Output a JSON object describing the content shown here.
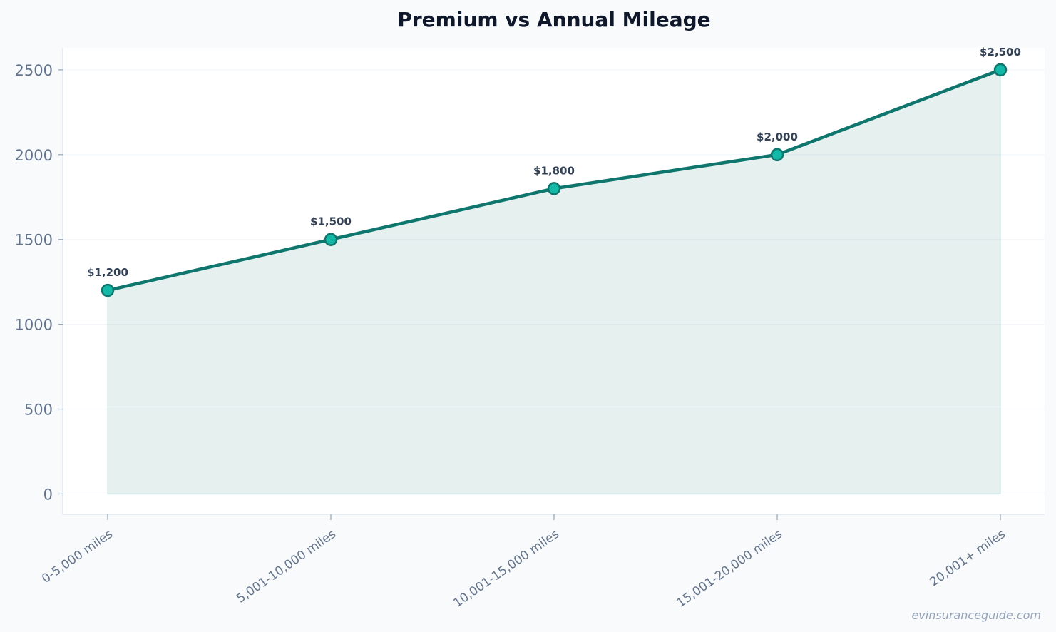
{
  "chart_data": {
    "type": "line",
    "title": "Premium vs Annual Mileage",
    "xlabel": "",
    "ylabel": "",
    "categories": [
      "0-5,000 miles",
      "5,001-10,000 miles",
      "10,001-15,000 miles",
      "15,001-20,000 miles",
      "20,001+ miles"
    ],
    "series": [
      {
        "values": [
          1200,
          1500,
          1800,
          2000,
          2500
        ],
        "labels": [
          "$1,200",
          "$1,500",
          "$1,800",
          "$2,000",
          "$2,500"
        ]
      }
    ],
    "ylim": [
      -120,
      2630
    ],
    "yticks": [
      0,
      500,
      1000,
      1500,
      2000,
      2500
    ],
    "grid": true,
    "area_fill": true,
    "legend": "none"
  },
  "watermark": "evinsuranceguide.com",
  "colors": {
    "background": "#f8fafc",
    "plot_background": "#ffffff",
    "line": "#0f766e",
    "marker_fill": "#14b8a6",
    "area_fill": "#0f766e",
    "grid": "#f1f5f9",
    "tick_text": "#64748b",
    "title_text": "#0f172a",
    "label_text": "#334155"
  }
}
